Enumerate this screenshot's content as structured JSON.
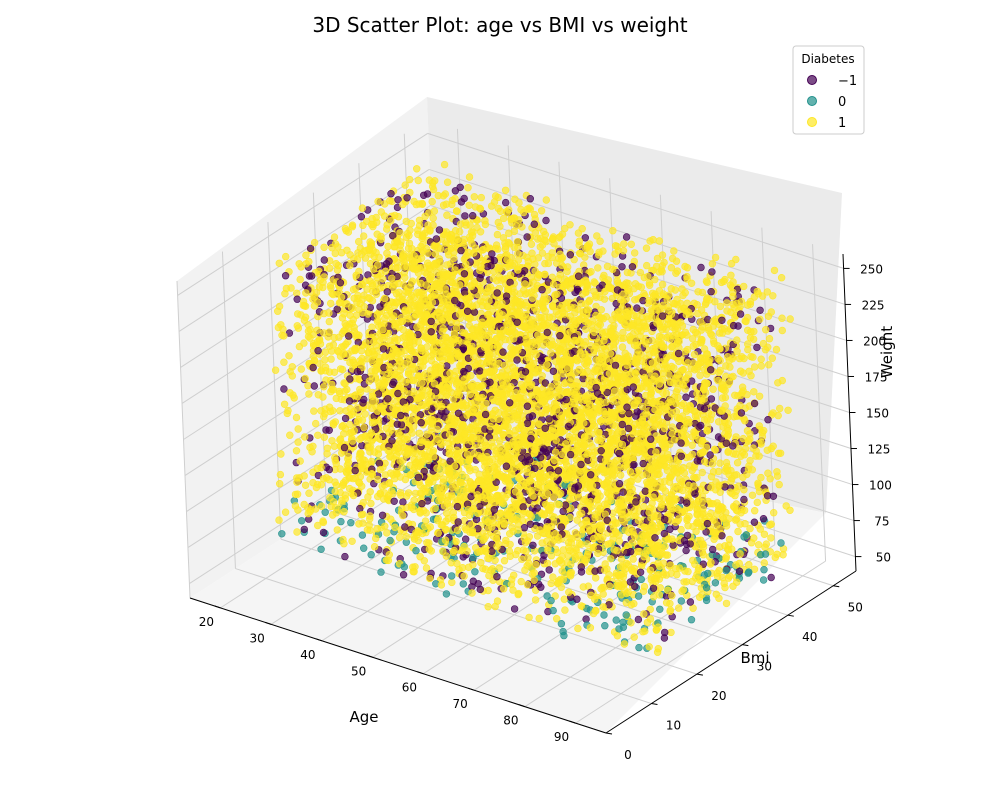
{
  "chart_data": {
    "type": "scatter",
    "projection": "3d",
    "title": "3D Scatter Plot: age vs BMI vs weight",
    "xlabel": "Age",
    "ylabel": "Bmi",
    "zlabel": "Weight",
    "xlim": [
      14,
      96
    ],
    "ylim": [
      0,
      55
    ],
    "zlim": [
      40,
      260
    ],
    "xticks": [
      "20",
      "30",
      "40",
      "50",
      "60",
      "70",
      "80",
      "90"
    ],
    "yticks": [
      "0",
      "10",
      "20",
      "30",
      "40",
      "50"
    ],
    "zticks": [
      "50",
      "75",
      "100",
      "125",
      "150",
      "175",
      "200",
      "225",
      "250"
    ],
    "grid": true,
    "legend": {
      "title": "Diabetes",
      "placement": "top-right",
      "entries": [
        "−1",
        "0",
        "1"
      ]
    },
    "series": [
      {
        "name": "−1",
        "color": "#440154",
        "approx_point_count": 1200,
        "x_range": [
          18,
          90
        ],
        "y_range": [
          15,
          50
        ],
        "z_range": [
          50,
          250
        ]
      },
      {
        "name": "0",
        "color": "#21918c",
        "approx_point_count": 250,
        "x_range": [
          18,
          90
        ],
        "y_range": [
          15,
          50
        ],
        "z_range": [
          45,
          75
        ]
      },
      {
        "name": "1",
        "color": "#fde725",
        "approx_point_count": 6000,
        "x_range": [
          18,
          90
        ],
        "y_range": [
          15,
          50
        ],
        "z_range": [
          50,
          250
        ]
      }
    ]
  }
}
